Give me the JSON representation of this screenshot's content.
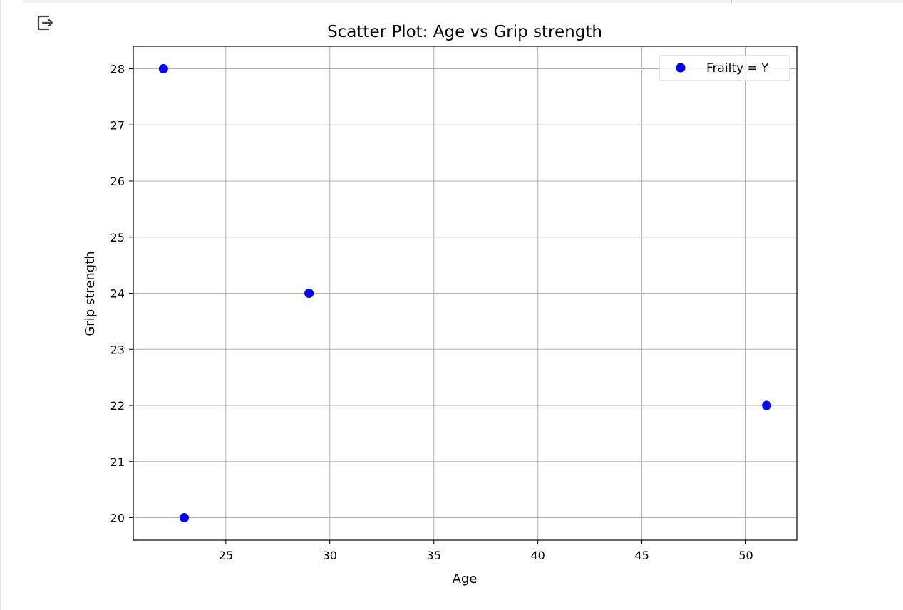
{
  "output_toolbar": {
    "icon": "output-exit-icon"
  },
  "chart_data": {
    "type": "scatter",
    "title": "Scatter Plot: Age vs Grip strength",
    "xlabel": "Age",
    "ylabel": "Grip strength",
    "xlim": [
      20.55,
      52.45
    ],
    "ylim": [
      19.6,
      28.4
    ],
    "xticks": [
      25,
      30,
      35,
      40,
      45,
      50
    ],
    "yticks": [
      20,
      21,
      22,
      23,
      24,
      25,
      26,
      27,
      28
    ],
    "grid": true,
    "legend_position": "top-right",
    "series": [
      {
        "name": "Frailty = Y",
        "color": "#0000ff",
        "points": [
          {
            "x": 22,
            "y": 28
          },
          {
            "x": 23,
            "y": 20
          },
          {
            "x": 29,
            "y": 24
          },
          {
            "x": 51,
            "y": 22
          }
        ]
      }
    ]
  }
}
